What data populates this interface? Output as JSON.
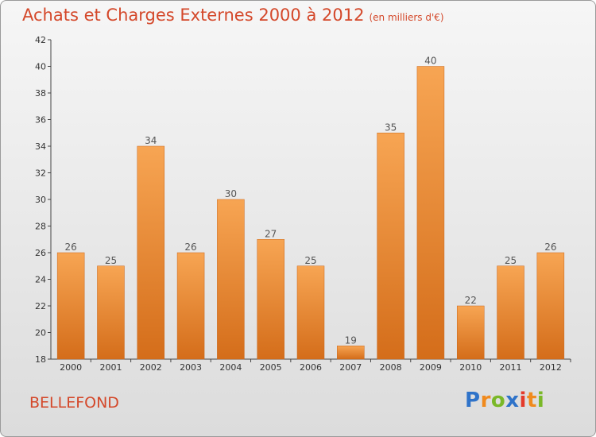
{
  "header": {
    "title": "Achats et Charges Externes 2000 à 2012",
    "subtitle": "(en milliers d'€)"
  },
  "footer": {
    "commune": "BELLEFOND",
    "logo_letters": [
      "P",
      "r",
      "o",
      "x",
      "i",
      "t",
      "i"
    ],
    "logo_colors": [
      "#2f73c9",
      "#f08a1d",
      "#7ab828",
      "#2f73c9",
      "#e43a2a",
      "#f08a1d",
      "#7ab828"
    ]
  },
  "chart_data": {
    "type": "bar",
    "title": "Achats et Charges Externes 2000 à 2012",
    "subtitle": "(en milliers d'€)",
    "categories": [
      "2000",
      "2001",
      "2002",
      "2003",
      "2004",
      "2005",
      "2006",
      "2007",
      "2008",
      "2009",
      "2010",
      "2011",
      "2012"
    ],
    "values": [
      26,
      25,
      34,
      26,
      30,
      27,
      25,
      19,
      35,
      40,
      22,
      25,
      26
    ],
    "ylim": [
      18,
      42
    ],
    "yticks": [
      18,
      20,
      22,
      24,
      26,
      28,
      30,
      32,
      34,
      36,
      38,
      40,
      42
    ],
    "grid": false,
    "bar_color_light": "#f7a553",
    "bar_color_dark": "#d46d1a",
    "label_color": "#555555"
  }
}
